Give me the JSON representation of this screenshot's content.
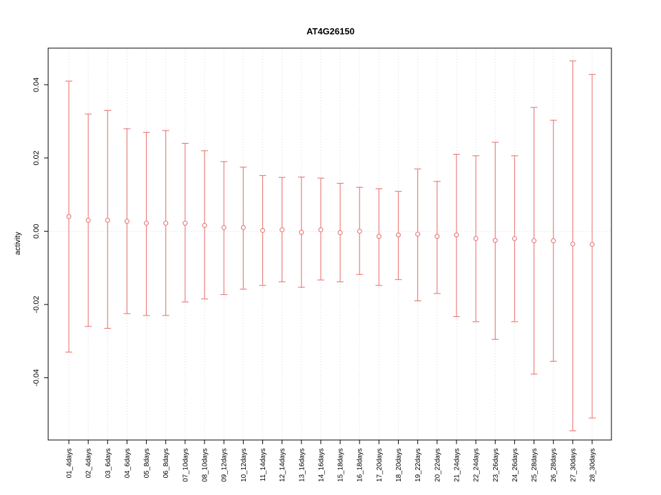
{
  "title": "AT4G26150",
  "chart_data": {
    "type": "errorbar",
    "title": "AT4G26150",
    "xlabel": "",
    "ylabel": "activity",
    "ylim": [
      -0.057,
      0.05
    ],
    "ytick_values": [
      -0.04,
      -0.02,
      0.0,
      0.02,
      0.04
    ],
    "ytick_labels": [
      "-0.04",
      "-0.02",
      "0.00",
      "0.02",
      "0.04"
    ],
    "grid": "dotted-vertical-per-category-and-dotted-zero-line",
    "legend": "none",
    "point_style": "open-circle",
    "series_color": "#e87672",
    "grid_color": "#d9d9d9",
    "categories": [
      "01_4days",
      "02_4days",
      "03_6days",
      "04_6days",
      "05_8days",
      "06_8days",
      "07_10days",
      "08_10days",
      "09_12days",
      "10_12days",
      "11_14days",
      "12_14days",
      "13_16days",
      "14_16days",
      "15_18days",
      "16_18days",
      "17_20days",
      "18_20days",
      "19_22days",
      "20_22days",
      "21_24days",
      "22_24days",
      "23_26days",
      "24_26days",
      "25_28days",
      "26_28days",
      "27_30days",
      "28_30days"
    ],
    "series": [
      {
        "name": "mean",
        "values": [
          0.004,
          0.003,
          0.003,
          0.0027,
          0.0022,
          0.0022,
          0.0022,
          0.0016,
          0.001,
          0.001,
          0.0002,
          0.0004,
          -0.0003,
          0.0004,
          -0.0004,
          0.0,
          -0.0014,
          -0.001,
          -0.0008,
          -0.0014,
          -0.001,
          -0.002,
          -0.0025,
          -0.002,
          -0.0026,
          -0.0026,
          -0.0035,
          -0.0036
        ]
      },
      {
        "name": "upper",
        "values": [
          0.041,
          0.032,
          0.033,
          0.028,
          0.027,
          0.0275,
          0.024,
          0.022,
          0.019,
          0.0175,
          0.0152,
          0.0147,
          0.0148,
          0.0145,
          0.0131,
          0.012,
          0.0116,
          0.0109,
          0.017,
          0.0136,
          0.021,
          0.0206,
          0.0243,
          0.0206,
          0.0338,
          0.0303,
          0.0465,
          0.0428
        ]
      },
      {
        "name": "lower",
        "values": [
          -0.033,
          -0.026,
          -0.0265,
          -0.0225,
          -0.023,
          -0.023,
          -0.0193,
          -0.0185,
          -0.0173,
          -0.0158,
          -0.0148,
          -0.0138,
          -0.0153,
          -0.0133,
          -0.0138,
          -0.0118,
          -0.0148,
          -0.0132,
          -0.019,
          -0.017,
          -0.0233,
          -0.0247,
          -0.0295,
          -0.0247,
          -0.039,
          -0.0355,
          -0.0545,
          -0.051
        ]
      }
    ]
  }
}
